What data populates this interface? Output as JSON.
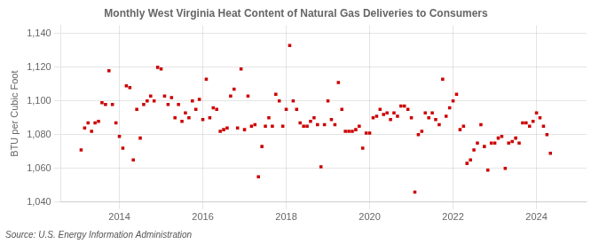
{
  "chart_data": {
    "type": "scatter",
    "title": "Monthly West Virginia Heat Content of Natural Gas Deliveries to Consumers",
    "ylabel": "BTU per Cubic Foot",
    "annotations": [
      "Source: U.S. Energy Information Administration"
    ],
    "color": "#cc0000",
    "marker": "square",
    "grid": true,
    "ylim": [
      1040,
      1145
    ],
    "yticks": [
      {
        "value": 1040,
        "label": "1,040"
      },
      {
        "value": 1060,
        "label": "1,060"
      },
      {
        "value": 1080,
        "label": "1,080"
      },
      {
        "value": 1100,
        "label": "1,100"
      },
      {
        "value": 1120,
        "label": "1,120"
      },
      {
        "value": 1140,
        "label": "1,140"
      }
    ],
    "xlim": [
      2012.6,
      2025.2
    ],
    "xticks": [
      2014,
      2016,
      2018,
      2020,
      2022,
      2024
    ],
    "x": [
      2013.083,
      2013.167,
      2013.25,
      2013.333,
      2013.417,
      2013.5,
      2013.583,
      2013.667,
      2013.75,
      2013.833,
      2013.917,
      2014.0,
      2014.083,
      2014.167,
      2014.25,
      2014.333,
      2014.417,
      2014.5,
      2014.583,
      2014.667,
      2014.75,
      2014.833,
      2014.917,
      2015.0,
      2015.083,
      2015.167,
      2015.25,
      2015.333,
      2015.417,
      2015.5,
      2015.583,
      2015.667,
      2015.75,
      2015.833,
      2015.917,
      2016.0,
      2016.083,
      2016.167,
      2016.25,
      2016.333,
      2016.417,
      2016.5,
      2016.583,
      2016.667,
      2016.75,
      2016.833,
      2016.917,
      2017.0,
      2017.083,
      2017.167,
      2017.25,
      2017.333,
      2017.417,
      2017.5,
      2017.583,
      2017.667,
      2017.75,
      2017.833,
      2017.917,
      2018.0,
      2018.083,
      2018.167,
      2018.25,
      2018.333,
      2018.417,
      2018.5,
      2018.583,
      2018.667,
      2018.75,
      2018.833,
      2018.917,
      2019.0,
      2019.083,
      2019.167,
      2019.25,
      2019.333,
      2019.417,
      2019.5,
      2019.583,
      2019.667,
      2019.75,
      2019.833,
      2019.917,
      2020.0,
      2020.083,
      2020.167,
      2020.25,
      2020.333,
      2020.417,
      2020.5,
      2020.583,
      2020.667,
      2020.75,
      2020.833,
      2020.917,
      2021.0,
      2021.083,
      2021.167,
      2021.25,
      2021.333,
      2021.417,
      2021.5,
      2021.583,
      2021.667,
      2021.75,
      2021.833,
      2021.917,
      2022.0,
      2022.083,
      2022.167,
      2022.25,
      2022.333,
      2022.417,
      2022.5,
      2022.583,
      2022.667,
      2022.75,
      2022.833,
      2022.917,
      2023.0,
      2023.083,
      2023.167,
      2023.25,
      2023.333,
      2023.417,
      2023.5,
      2023.583,
      2023.667,
      2023.75,
      2023.833,
      2023.917,
      2024.0,
      2024.083,
      2024.167,
      2024.25,
      2024.333
    ],
    "values": [
      1071,
      1084,
      1087,
      1082,
      1087,
      1088,
      1099,
      1098,
      1118,
      1098,
      1087,
      1079,
      1072,
      1109,
      1108,
      1065,
      1095,
      1078,
      1098,
      1100,
      1103,
      1100,
      1120,
      1119,
      1103,
      1098,
      1102,
      1090,
      1098,
      1088,
      1093,
      1090,
      1100,
      1095,
      1101,
      1089,
      1113,
      1090,
      1096,
      1095,
      1082,
      1083,
      1084,
      1103,
      1107,
      1084,
      1119,
      1083,
      1103,
      1085,
      1086,
      1055,
      1073,
      1085,
      1090,
      1085,
      1104,
      1100,
      1085,
      1095,
      1133,
      1100,
      1095,
      1087,
      1085,
      1085,
      1088,
      1090,
      1086,
      1061,
      1086,
      1100,
      1089,
      1086,
      1111,
      1095,
      1082,
      1082,
      1082,
      1083,
      1085,
      1072,
      1081,
      1081,
      1090,
      1091,
      1095,
      1092,
      1093,
      1089,
      1093,
      1091,
      1097,
      1097,
      1095,
      1090,
      1046,
      1080,
      1082,
      1093,
      1090,
      1093,
      1089,
      1086,
      1113,
      1091,
      1096,
      1100,
      1104,
      1083,
      1085,
      1063,
      1065,
      1071,
      1075,
      1086,
      1073,
      1059,
      1075,
      1075,
      1078,
      1079,
      1060,
      1075,
      1076,
      1078,
      1075,
      1087,
      1087,
      1085,
      1088,
      1093,
      1090,
      1085,
      1080,
      1069
    ]
  }
}
